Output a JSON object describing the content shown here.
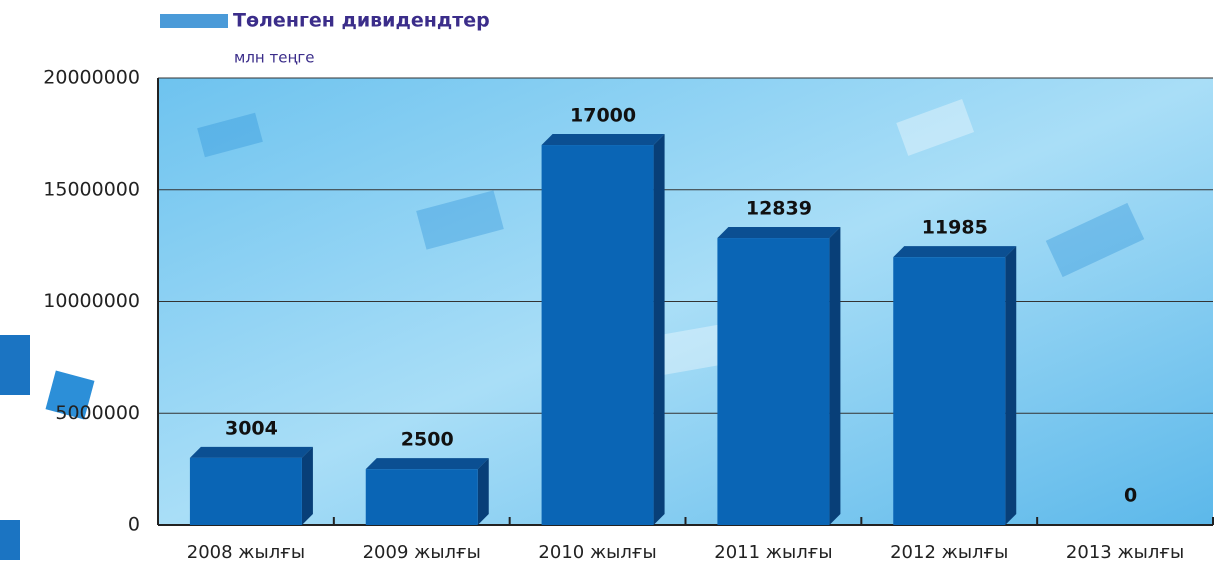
{
  "chart_data": {
    "type": "bar",
    "title": "Төленген дивидендтер",
    "subtitle": "млн теңге",
    "categories": [
      "2008 жылғы",
      "2009 жылғы",
      "2010 жылғы",
      "2011 жылғы",
      "2012 жылғы",
      "2013 жылғы"
    ],
    "values": [
      3004000,
      2500000,
      17000000,
      12839000,
      11985000,
      0
    ],
    "value_labels": [
      "3004",
      "2500",
      "17000",
      "12839",
      "11985",
      "0"
    ],
    "color": "#0a65b5",
    "ylim": [
      0,
      20000000
    ],
    "yticks": [
      0,
      5000000,
      10000000,
      15000000,
      20000000
    ],
    "grid": true
  }
}
